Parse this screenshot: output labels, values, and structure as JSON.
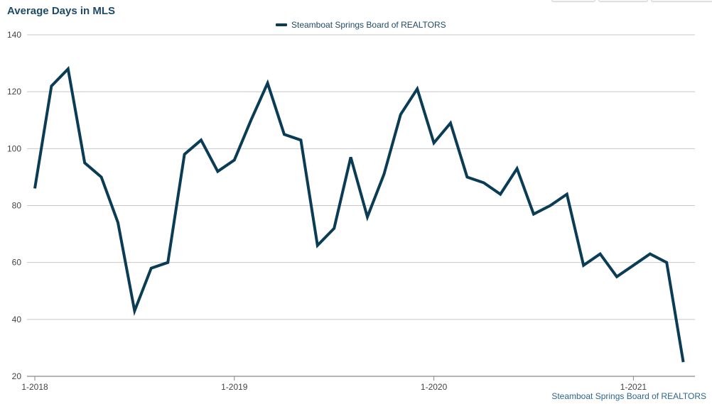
{
  "title": "Average Days in MLS",
  "source": "Steamboat Springs Board of REALTORS",
  "colors": {
    "line": "#0a3d55",
    "grid": "#c8c8c8",
    "title": "#1f4a66"
  },
  "chart_data": {
    "type": "line",
    "title": "Average Days in MLS",
    "xlabel": "",
    "ylabel": "",
    "ylim": [
      20,
      140
    ],
    "yticks": [
      20,
      40,
      60,
      80,
      100,
      120,
      140
    ],
    "xtick_labels": [
      "1-2018",
      "1-2019",
      "1-2020",
      "1-2021"
    ],
    "grid": true,
    "legend_position": "top-center",
    "x": [
      "1-2018",
      "2-2018",
      "3-2018",
      "4-2018",
      "5-2018",
      "6-2018",
      "7-2018",
      "8-2018",
      "9-2018",
      "10-2018",
      "11-2018",
      "12-2018",
      "1-2019",
      "2-2019",
      "3-2019",
      "4-2019",
      "5-2019",
      "6-2019",
      "7-2019",
      "8-2019",
      "9-2019",
      "10-2019",
      "11-2019",
      "12-2019",
      "1-2020",
      "2-2020",
      "3-2020",
      "4-2020",
      "5-2020",
      "6-2020",
      "7-2020",
      "8-2020",
      "9-2020",
      "10-2020",
      "11-2020",
      "12-2020",
      "1-2021",
      "2-2021",
      "3-2021",
      "4-2021"
    ],
    "series": [
      {
        "name": "Steamboat Springs Board of REALTORS",
        "values": [
          86,
          122,
          128,
          95,
          90,
          74,
          43,
          58,
          60,
          98,
          103,
          92,
          96,
          110,
          123,
          105,
          103,
          66,
          72,
          97,
          76,
          91,
          112,
          121,
          102,
          109,
          90,
          88,
          84,
          93,
          77,
          80,
          84,
          59,
          63,
          55,
          59,
          63,
          60,
          25
        ]
      }
    ]
  }
}
